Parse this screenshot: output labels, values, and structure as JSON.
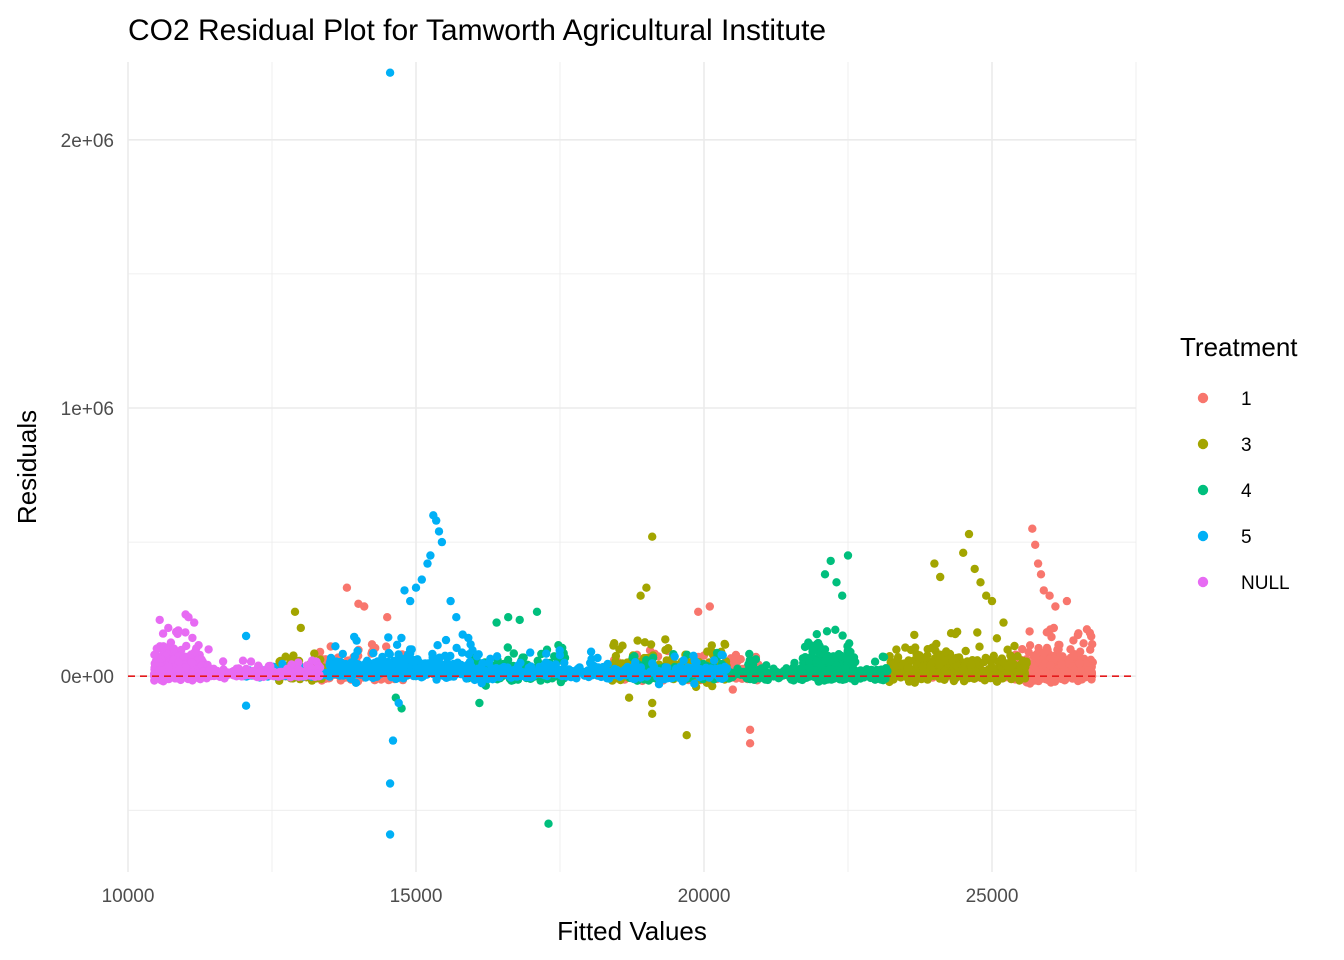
{
  "chart_data": {
    "type": "scatter",
    "title": "CO2 Residual Plot for Tamworth Agricultural Institute",
    "xlabel": "Fitted Values",
    "ylabel": "Residuals",
    "xlim": [
      10000,
      27500
    ],
    "ylim": [
      -730000,
      2290000
    ],
    "x_ticks": [
      10000,
      15000,
      20000,
      25000
    ],
    "x_tick_labels": [
      "10000",
      "15000",
      "20000",
      "25000"
    ],
    "y_ticks": [
      0,
      1000000,
      2000000
    ],
    "y_tick_labels": [
      "0e+00",
      "1e+06",
      "2e+06"
    ],
    "grid": true,
    "reference_line": {
      "y": 0,
      "style": "dashed",
      "color": "#e41a1c"
    },
    "legend": {
      "title": "Treatment",
      "position": "right"
    },
    "series": [
      {
        "name": "1",
        "color": "#F8766D",
        "bands": [
          {
            "x_range": [
              13300,
              14800
            ],
            "base": 5000,
            "spread": 40000,
            "tail": [
              -20000,
              120000
            ],
            "n": 260
          },
          {
            "x_range": [
              18300,
              21000
            ],
            "base": 5000,
            "spread": 35000,
            "tail": [
              -20000,
              100000
            ],
            "n": 300
          },
          {
            "x_range": [
              23000,
              25600
            ],
            "base": 0,
            "spread": 15000,
            "tail": [
              -10000,
              40000
            ],
            "n": 200
          },
          {
            "x_range": [
              25400,
              26750
            ],
            "base": 10000,
            "spread": 60000,
            "tail": [
              -20000,
              180000
            ],
            "n": 380
          }
        ],
        "points": [
          [
            13800,
            330000
          ],
          [
            14000,
            270000
          ],
          [
            14100,
            260000
          ],
          [
            14500,
            220000
          ],
          [
            19900,
            240000
          ],
          [
            20100,
            260000
          ],
          [
            20800,
            -250000
          ],
          [
            20800,
            -200000
          ],
          [
            20500,
            -50000
          ],
          [
            25700,
            550000
          ],
          [
            25750,
            490000
          ],
          [
            25800,
            420000
          ],
          [
            25850,
            380000
          ],
          [
            25900,
            320000
          ],
          [
            26000,
            300000
          ],
          [
            26100,
            260000
          ],
          [
            26300,
            280000
          ],
          [
            26500,
            160000
          ]
        ]
      },
      {
        "name": "3",
        "color": "#A3A500",
        "bands": [
          {
            "x_range": [
              12600,
              13400
            ],
            "base": 5000,
            "spread": 35000,
            "tail": [
              -20000,
              80000
            ],
            "n": 160
          },
          {
            "x_range": [
              18400,
              20400
            ],
            "base": 10000,
            "spread": 45000,
            "tail": [
              -40000,
              150000
            ],
            "n": 320
          },
          {
            "x_range": [
              23200,
              25600
            ],
            "base": 10000,
            "spread": 55000,
            "tail": [
              -20000,
              170000
            ],
            "n": 420
          }
        ],
        "points": [
          [
            12900,
            240000
          ],
          [
            13000,
            180000
          ],
          [
            19100,
            520000
          ],
          [
            19000,
            330000
          ],
          [
            18900,
            300000
          ],
          [
            19100,
            -140000
          ],
          [
            19100,
            -100000
          ],
          [
            19700,
            -220000
          ],
          [
            18700,
            -80000
          ],
          [
            24000,
            420000
          ],
          [
            24100,
            370000
          ],
          [
            24600,
            530000
          ],
          [
            24500,
            460000
          ],
          [
            24700,
            400000
          ],
          [
            24800,
            350000
          ],
          [
            24900,
            300000
          ],
          [
            25000,
            280000
          ],
          [
            25200,
            200000
          ]
        ]
      },
      {
        "name": "4",
        "color": "#00BF7D",
        "bands": [
          {
            "x_range": [
              15900,
              17600
            ],
            "base": 5000,
            "spread": 35000,
            "tail": [
              -40000,
              120000
            ],
            "n": 260
          },
          {
            "x_range": [
              18700,
              23200
            ],
            "base": 0,
            "spread": 30000,
            "tail": [
              -20000,
              90000
            ],
            "n": 420
          },
          {
            "x_range": [
              21700,
              22600
            ],
            "base": 20000,
            "spread": 60000,
            "tail": [
              -10000,
              180000
            ],
            "n": 240
          }
        ],
        "points": [
          [
            17300,
            -550000
          ],
          [
            14750,
            -120000
          ],
          [
            14650,
            -80000
          ],
          [
            16100,
            -100000
          ],
          [
            22200,
            430000
          ],
          [
            22500,
            450000
          ],
          [
            22100,
            380000
          ],
          [
            22300,
            350000
          ],
          [
            22400,
            300000
          ],
          [
            16600,
            220000
          ],
          [
            16800,
            210000
          ],
          [
            17100,
            240000
          ],
          [
            16400,
            200000
          ]
        ]
      },
      {
        "name": "5",
        "color": "#00B0F6",
        "bands": [
          {
            "x_range": [
              12000,
              13500
            ],
            "base": 5000,
            "spread": 15000,
            "tail": [
              -20000,
              60000
            ],
            "n": 160
          },
          {
            "x_range": [
              13500,
              16000
            ],
            "base": 15000,
            "spread": 45000,
            "tail": [
              -30000,
              160000
            ],
            "n": 420
          },
          {
            "x_range": [
              16000,
              20400
            ],
            "base": 5000,
            "spread": 30000,
            "tail": [
              -30000,
              100000
            ],
            "n": 380
          }
        ],
        "points": [
          [
            14550,
            2250000
          ],
          [
            14550,
            -590000
          ],
          [
            14550,
            -400000
          ],
          [
            14600,
            -240000
          ],
          [
            12050,
            -110000
          ],
          [
            12050,
            150000
          ],
          [
            15300,
            600000
          ],
          [
            15350,
            580000
          ],
          [
            15400,
            540000
          ],
          [
            15450,
            500000
          ],
          [
            15250,
            450000
          ],
          [
            15200,
            420000
          ],
          [
            15100,
            360000
          ],
          [
            15000,
            330000
          ],
          [
            14800,
            320000
          ],
          [
            14900,
            280000
          ],
          [
            15600,
            280000
          ],
          [
            15700,
            220000
          ],
          [
            14700,
            -100000
          ]
        ]
      },
      {
        "name": "NULL",
        "color": "#E76BF3",
        "bands": [
          {
            "x_range": [
              10450,
              11300
            ],
            "base": 15000,
            "spread": 55000,
            "tail": [
              -10000,
              170000
            ],
            "n": 420
          },
          {
            "x_range": [
              11300,
              13350
            ],
            "base": 5000,
            "spread": 15000,
            "tail": [
              -10000,
              60000
            ],
            "n": 360
          }
        ],
        "points": [
          [
            10550,
            210000
          ],
          [
            11000,
            230000
          ],
          [
            11050,
            220000
          ],
          [
            11150,
            200000
          ],
          [
            10700,
            180000
          ],
          [
            11400,
            100000
          ]
        ]
      }
    ]
  }
}
